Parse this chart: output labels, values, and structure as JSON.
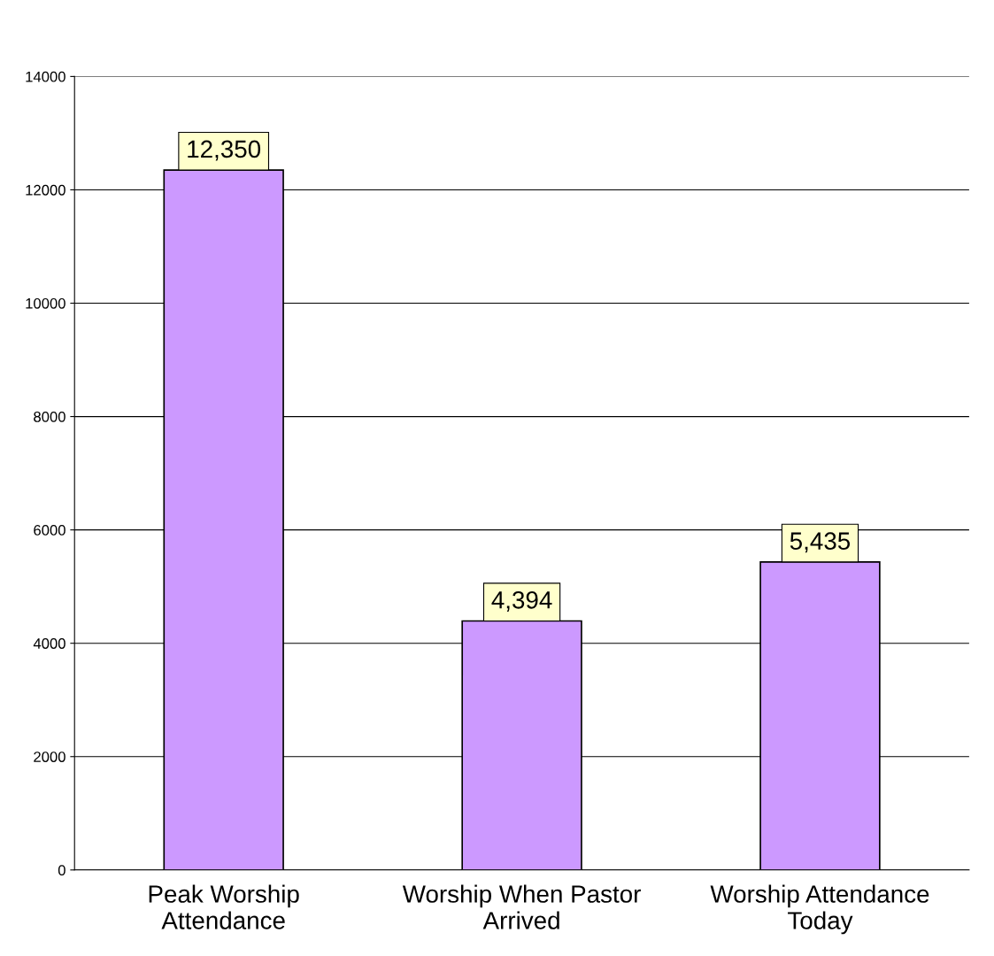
{
  "chart_data": {
    "type": "bar",
    "categories": [
      "Peak Worship\nAttendance",
      "Worship When Pastor\nArrived",
      "Worship Attendance\nToday"
    ],
    "values": [
      12350,
      4394,
      5435
    ],
    "value_labels": [
      "12,350",
      "4,394",
      "5,435"
    ],
    "color": "#cc99ff",
    "ylim": [
      0,
      14000
    ],
    "yticks": [
      0,
      2000,
      4000,
      6000,
      8000,
      10000,
      12000,
      14000
    ],
    "grid": "y"
  }
}
